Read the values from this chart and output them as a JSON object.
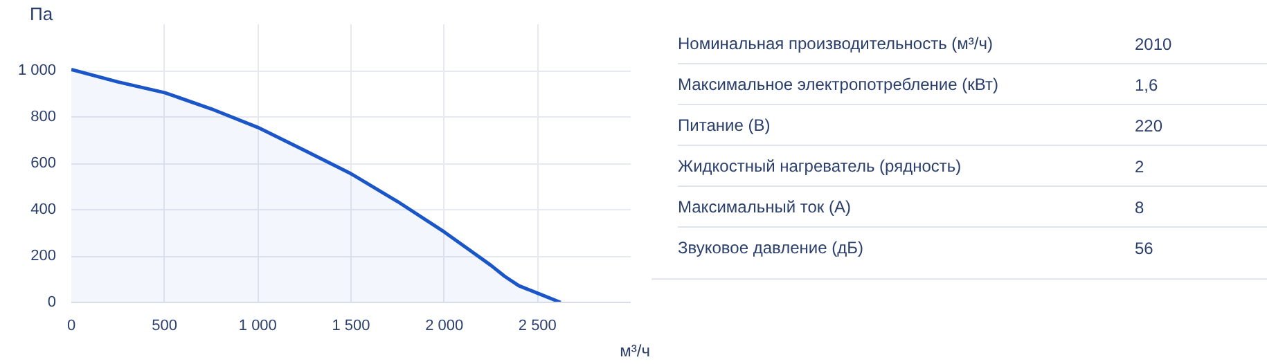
{
  "chart_data": [
    {
      "type": "area",
      "xlabel": "м³/ч",
      "ylabel": "Па",
      "x": [
        0,
        250,
        500,
        750,
        1000,
        1250,
        1500,
        1750,
        2000,
        2125,
        2250,
        2325,
        2400,
        2500,
        2624
      ],
      "series": [
        {
          "color": "#1a56c8",
          "values": [
            1005,
            951,
            905,
            835,
            755,
            656,
            555,
            435,
            304,
            232,
            160,
            112,
            72,
            40,
            0
          ]
        }
      ],
      "xlim": [
        0,
        3000
      ],
      "ylim": [
        0,
        1200
      ],
      "xticks": [
        0,
        500,
        {
          "value": 1000,
          "label": "1 000"
        },
        {
          "value": 1500,
          "label": "1 500"
        },
        {
          "value": 2000,
          "label": "2 000"
        },
        {
          "value": 2500,
          "label": "2 500"
        }
      ],
      "yticks": [
        0,
        200,
        400,
        600,
        800,
        {
          "value": 1000,
          "label": "1 000"
        }
      ],
      "grid": true
    },
    {
      "type": "other",
      "categories": [
        "Номинальная производительность (м³/ч)",
        "Максимальное электропотребление (кВт)",
        "Питание (В)",
        "Жидкостный нагреватель (рядность)",
        "Максимальный ток (А)",
        "Звуковое давление (дБ)"
      ],
      "value_labels": [
        "2010",
        "1,6",
        "220",
        "2",
        "8",
        "56"
      ]
    }
  ]
}
